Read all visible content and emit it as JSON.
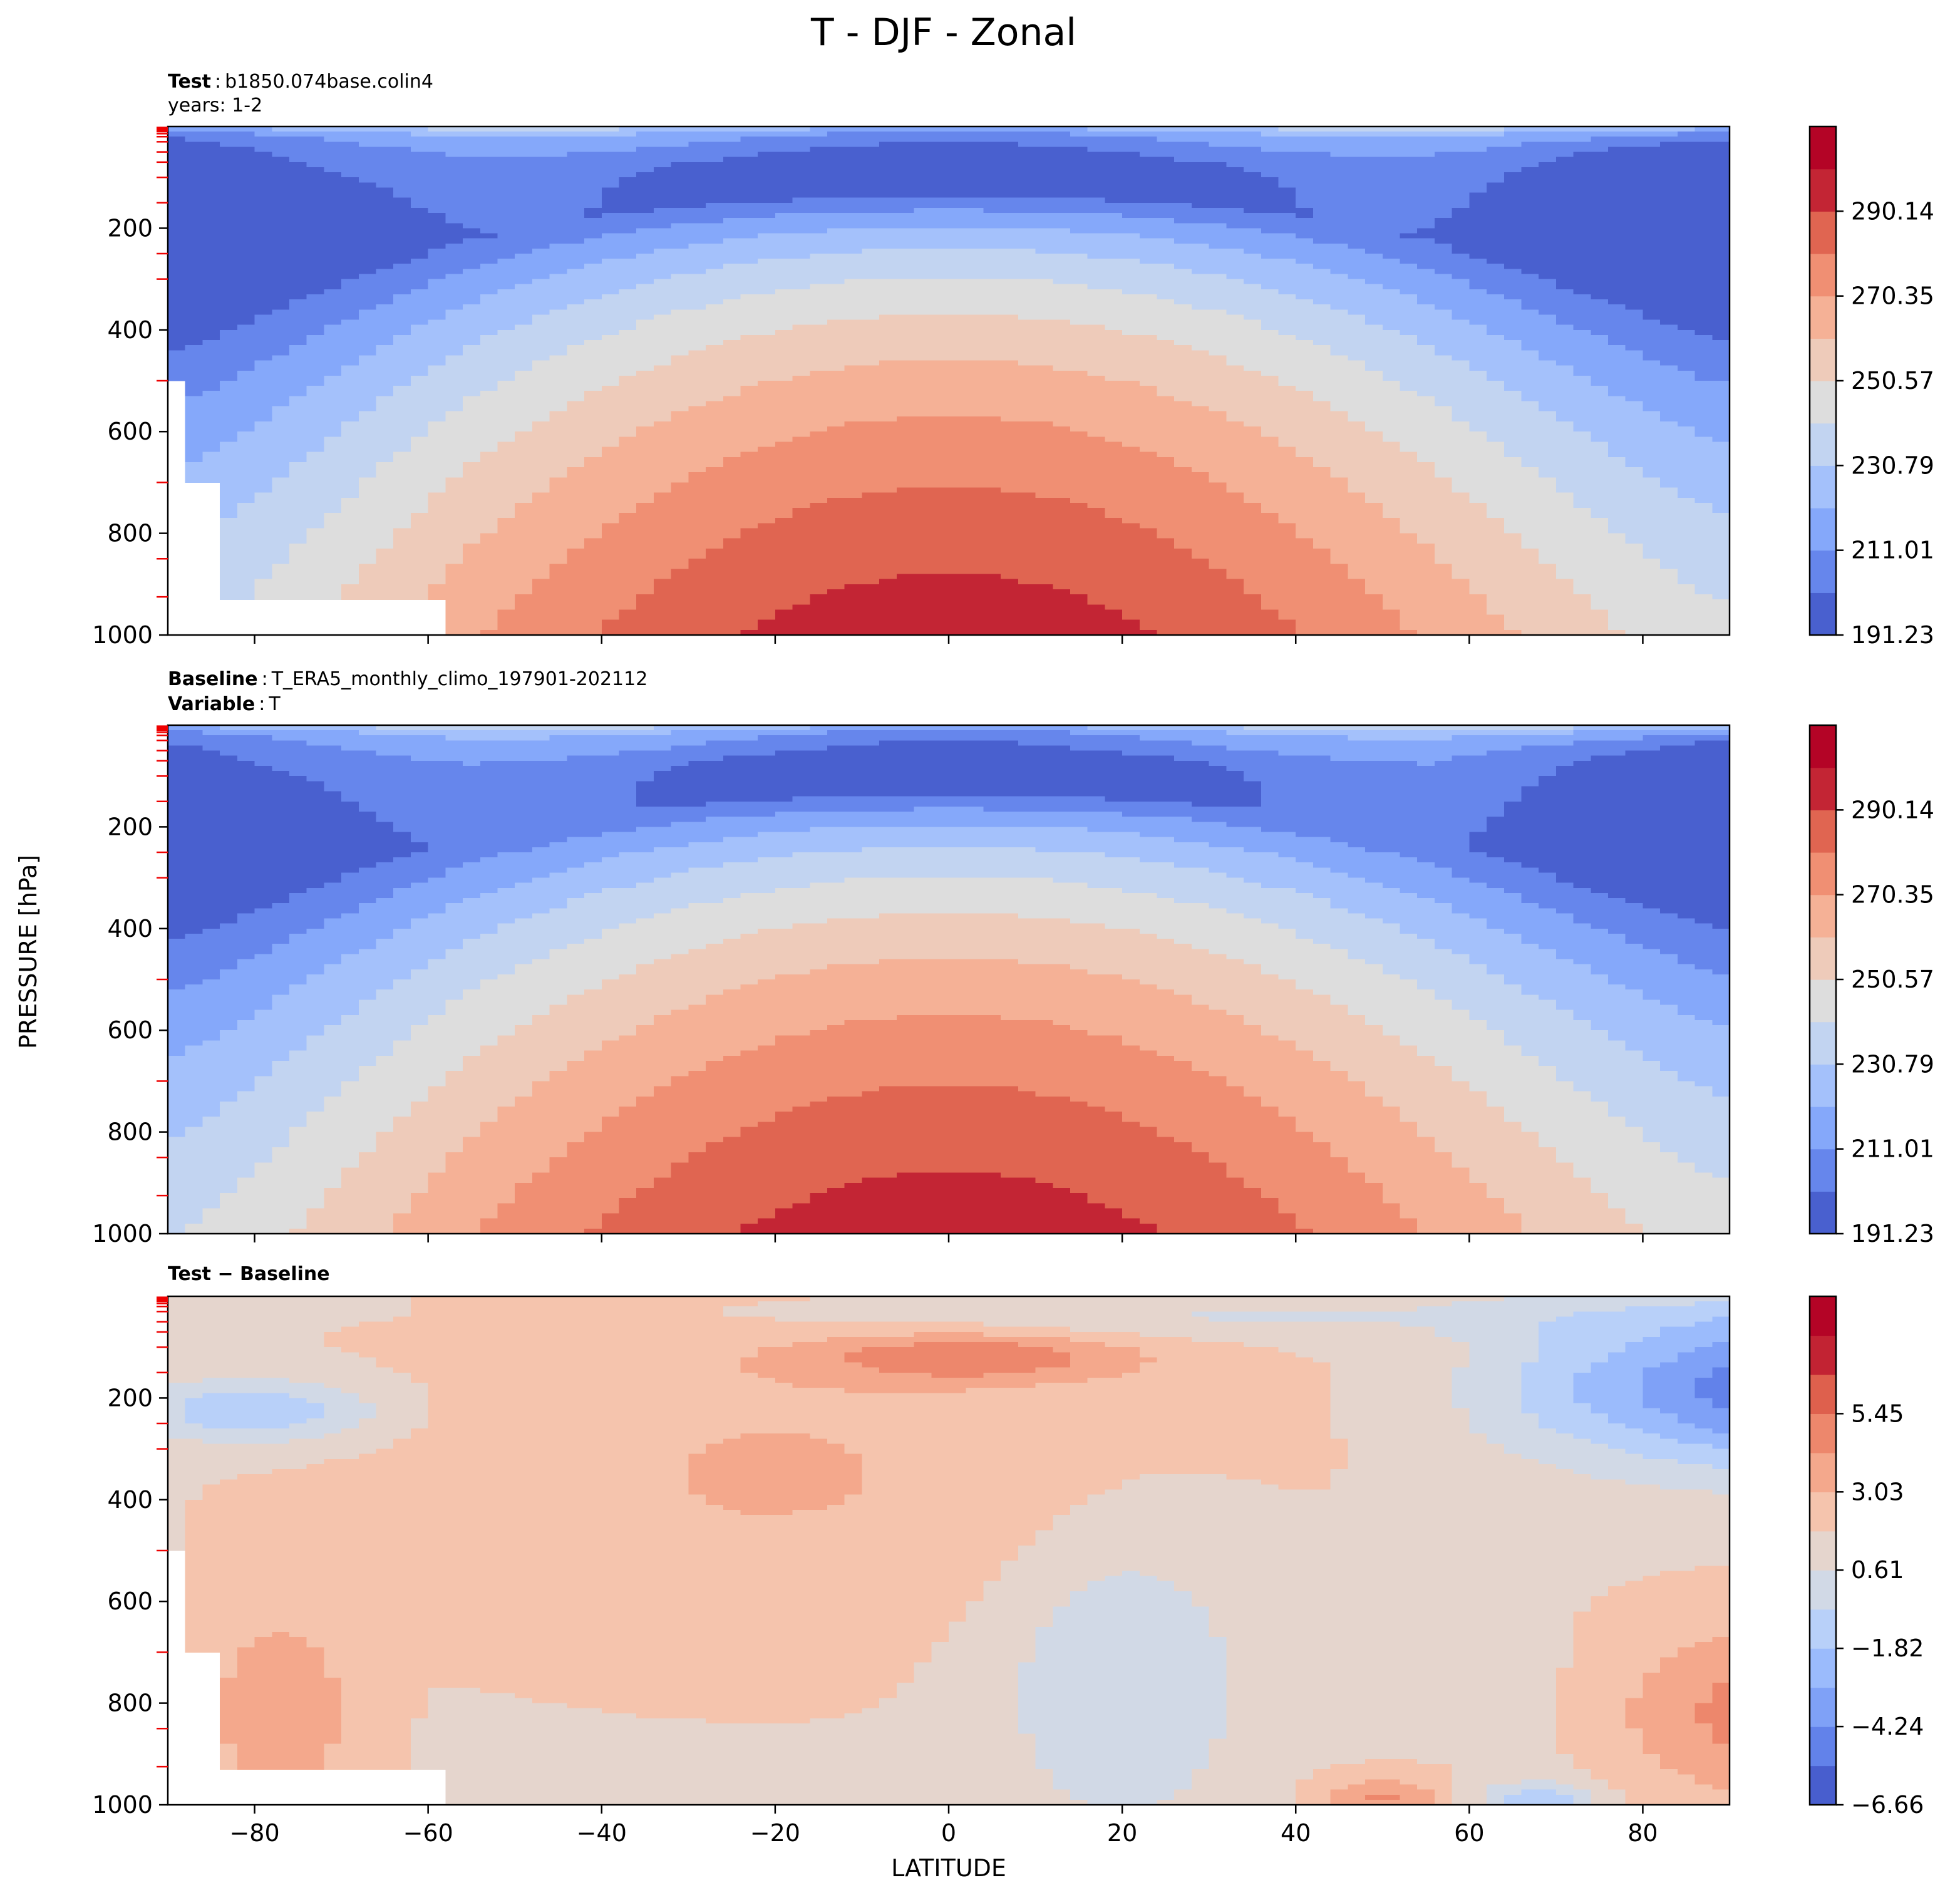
{
  "figure": {
    "title": "T - DJF - Zonal",
    "ylabel": "PRESSURE [hPa]",
    "xlabel": "LATITUDE"
  },
  "chart_data": [
    {
      "type": "heatmap",
      "panel": "test",
      "header": {
        "key": "Test",
        "value": "b1850.074base.colin4",
        "line2": "years: 1-2"
      },
      "xlim": [
        -90,
        90
      ],
      "ylim": [
        1000,
        0
      ],
      "x_ticks": [
        -80,
        -60,
        -40,
        -20,
        0,
        20,
        40,
        60,
        80
      ],
      "y_ticks": [
        200,
        400,
        600,
        800,
        1000
      ],
      "y_tick_labels": [
        "200",
        "400",
        "600",
        "800",
        "1000"
      ],
      "colormap": "coolwarm",
      "levels": 11,
      "vmin": 191.23,
      "vmax": 300.03,
      "colorbar_ticks": [
        "191.23",
        "211.01",
        "230.79",
        "250.57",
        "270.35",
        "290.14"
      ],
      "colorbar_tick_values": [
        191.23,
        211.01,
        230.79,
        250.57,
        270.35,
        290.14
      ],
      "field_model": {
        "kind": "temperature",
        "surface_eq": 296,
        "surface_pole": 244,
        "lapse": 0.062,
        "trop_eq": 100,
        "trop_pole": 280,
        "strat_cold": 197
      }
    },
    {
      "type": "heatmap",
      "panel": "baseline",
      "header": {
        "key": "Baseline",
        "value": "T_ERA5_monthly_climo_197901-202112",
        "key2": "Variable",
        "value2": "T"
      },
      "xlim": [
        -90,
        90
      ],
      "ylim": [
        1000,
        0
      ],
      "x_ticks": [
        -80,
        -60,
        -40,
        -20,
        0,
        20,
        40,
        60,
        80
      ],
      "y_ticks": [
        200,
        400,
        600,
        800,
        1000
      ],
      "y_tick_labels": [
        "200",
        "400",
        "600",
        "800",
        "1000"
      ],
      "colormap": "coolwarm",
      "levels": 11,
      "vmin": 191.23,
      "vmax": 300.03,
      "colorbar_ticks": [
        "191.23",
        "211.01",
        "230.79",
        "250.57",
        "270.35",
        "290.14"
      ],
      "colorbar_tick_values": [
        191.23,
        211.01,
        230.79,
        250.57,
        270.35,
        290.14
      ],
      "field_model": {
        "kind": "temperature",
        "surface_eq": 296,
        "surface_pole": 246,
        "lapse": 0.061,
        "trop_eq": 100,
        "trop_pole": 290,
        "strat_cold": 199
      }
    },
    {
      "type": "heatmap",
      "panel": "difference",
      "header": {
        "key": "Test − Baseline"
      },
      "xlim": [
        -90,
        90
      ],
      "ylim": [
        1000,
        0
      ],
      "x_ticks": [
        -80,
        -60,
        -40,
        -20,
        0,
        20,
        40,
        60,
        80
      ],
      "x_tick_labels": [
        "−80",
        "−60",
        "−40",
        "−20",
        "0",
        "20",
        "40",
        "60",
        "80"
      ],
      "y_ticks": [
        200,
        400,
        600,
        800,
        1000
      ],
      "y_tick_labels": [
        "200",
        "400",
        "600",
        "800",
        "1000"
      ],
      "colormap": "coolwarm",
      "levels": 12,
      "vmin": -6.66,
      "vmax": 6.66,
      "colorbar_ticks": [
        "−6.66",
        "−4.24",
        "−1.82",
        "0.61",
        "3.03",
        "5.45"
      ],
      "colorbar_tick_values": [
        -6.66,
        -4.24,
        -1.82,
        0.61,
        3.03,
        5.45
      ],
      "field_model": {
        "kind": "difference"
      }
    }
  ]
}
